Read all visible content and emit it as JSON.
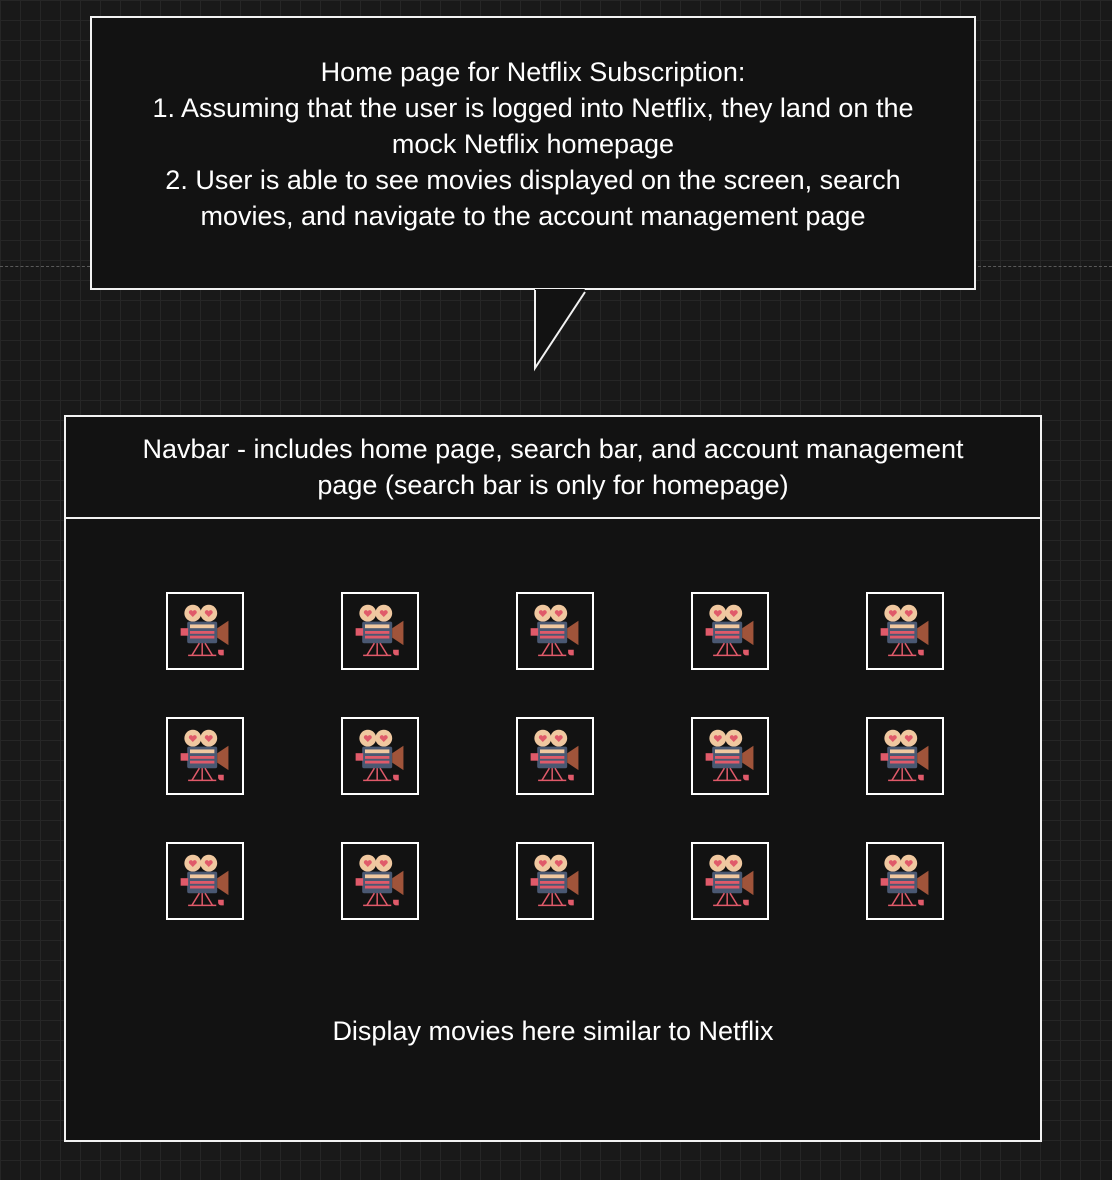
{
  "callout": {
    "lines": [
      "Home page for Netflix Subscription:",
      "1. Assuming that the user is logged into Netflix, they land on the",
      "mock Netflix homepage",
      "2. User is able to see movies displayed on the screen, search",
      "movies, and navigate to the account management page"
    ]
  },
  "wireframe": {
    "navbar": {
      "lines": [
        "Navbar - includes home page, search bar, and account management",
        "page (search bar is only for homepage)"
      ]
    },
    "movie_grid": {
      "rows": 3,
      "columns": 5,
      "icon": "movie-camera-icon"
    },
    "footer_text": "Display movies here similar to Netflix"
  },
  "colors": {
    "canvas": "#191919",
    "box_fill": "#121212",
    "stroke": "#f2f2f2",
    "camera_body": "#4a5872",
    "camera_reels": "#f0c8a0",
    "camera_accent": "#e05a6a",
    "camera_lens": "#a0543a"
  }
}
